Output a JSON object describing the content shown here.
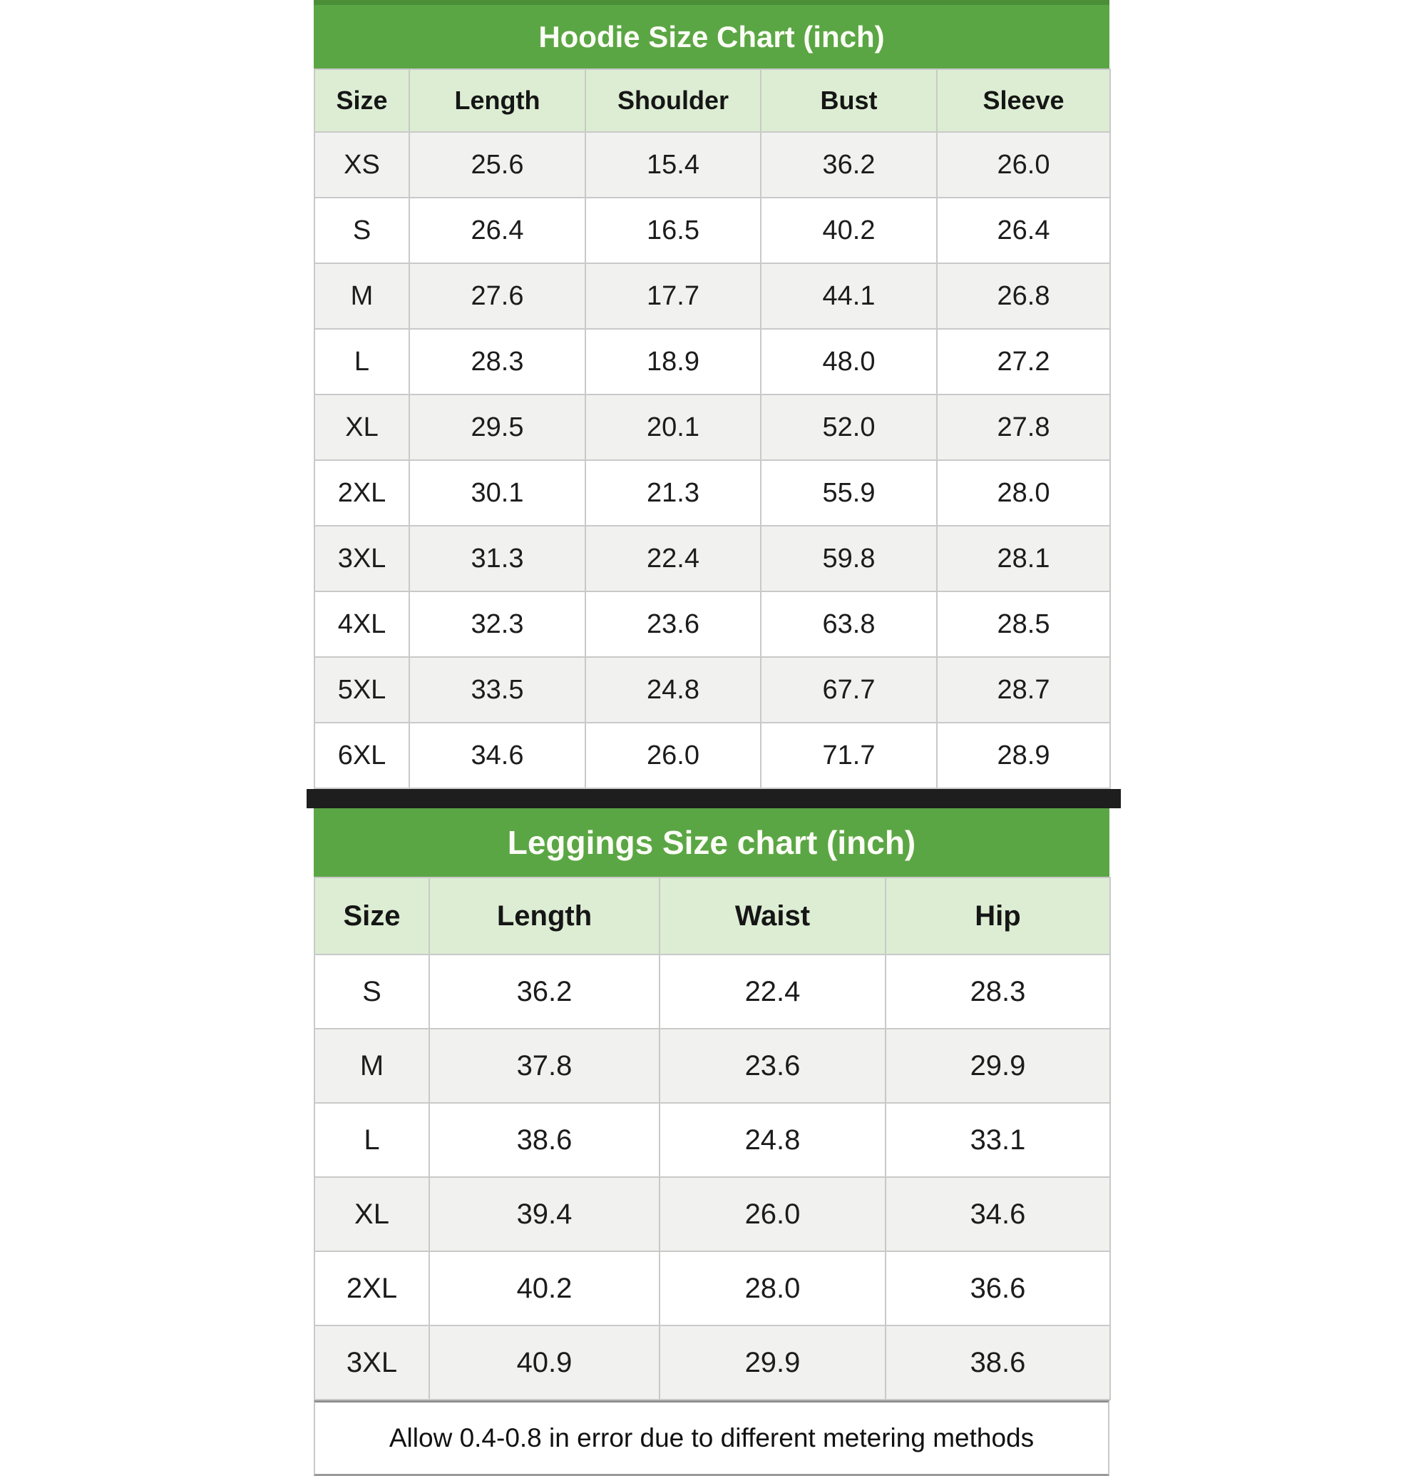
{
  "colors": {
    "title_green": "#5BA644",
    "title_green_dark_edge": "#4A8F38",
    "header_row_green": "#DCEDD3",
    "row_alternate_gray": "#F1F1EF",
    "row_white": "#FFFFFF",
    "separator_black": "#1E1E1E",
    "border_gray": "#C9C9C9",
    "text_dark": "#1C1C1C",
    "title_text_white": "#FBFDF6"
  },
  "footer": {
    "note": "Allow 0.4-0.8 in error due to different metering methods"
  },
  "chart_data": [
    {
      "type": "table",
      "title": "Hoodie Size Chart (inch)",
      "unit": "inch",
      "columns": [
        "Size",
        "Length",
        "Shoulder",
        "Bust",
        "Sleeve"
      ],
      "rows": [
        [
          "XS",
          "25.6",
          "15.4",
          "36.2",
          "26.0"
        ],
        [
          "S",
          "26.4",
          "16.5",
          "40.2",
          "26.4"
        ],
        [
          "M",
          "27.6",
          "17.7",
          "44.1",
          "26.8"
        ],
        [
          "L",
          "28.3",
          "18.9",
          "48.0",
          "27.2"
        ],
        [
          "XL",
          "29.5",
          "20.1",
          "52.0",
          "27.8"
        ],
        [
          "2XL",
          "30.1",
          "21.3",
          "55.9",
          "28.0"
        ],
        [
          "3XL",
          "31.3",
          "22.4",
          "59.8",
          "28.1"
        ],
        [
          "4XL",
          "32.3",
          "23.6",
          "63.8",
          "28.5"
        ],
        [
          "5XL",
          "33.5",
          "24.8",
          "67.7",
          "28.7"
        ],
        [
          "6XL",
          "34.6",
          "26.0",
          "71.7",
          "28.9"
        ]
      ]
    },
    {
      "type": "table",
      "title": "Leggings Size chart (inch)",
      "unit": "inch",
      "columns": [
        "Size",
        "Length",
        "Waist",
        "Hip"
      ],
      "rows": [
        [
          "S",
          "36.2",
          "22.4",
          "28.3"
        ],
        [
          "M",
          "37.8",
          "23.6",
          "29.9"
        ],
        [
          "L",
          "38.6",
          "24.8",
          "33.1"
        ],
        [
          "XL",
          "39.4",
          "26.0",
          "34.6"
        ],
        [
          "2XL",
          "40.2",
          "28.0",
          "36.6"
        ],
        [
          "3XL",
          "40.9",
          "29.9",
          "38.6"
        ]
      ]
    }
  ]
}
